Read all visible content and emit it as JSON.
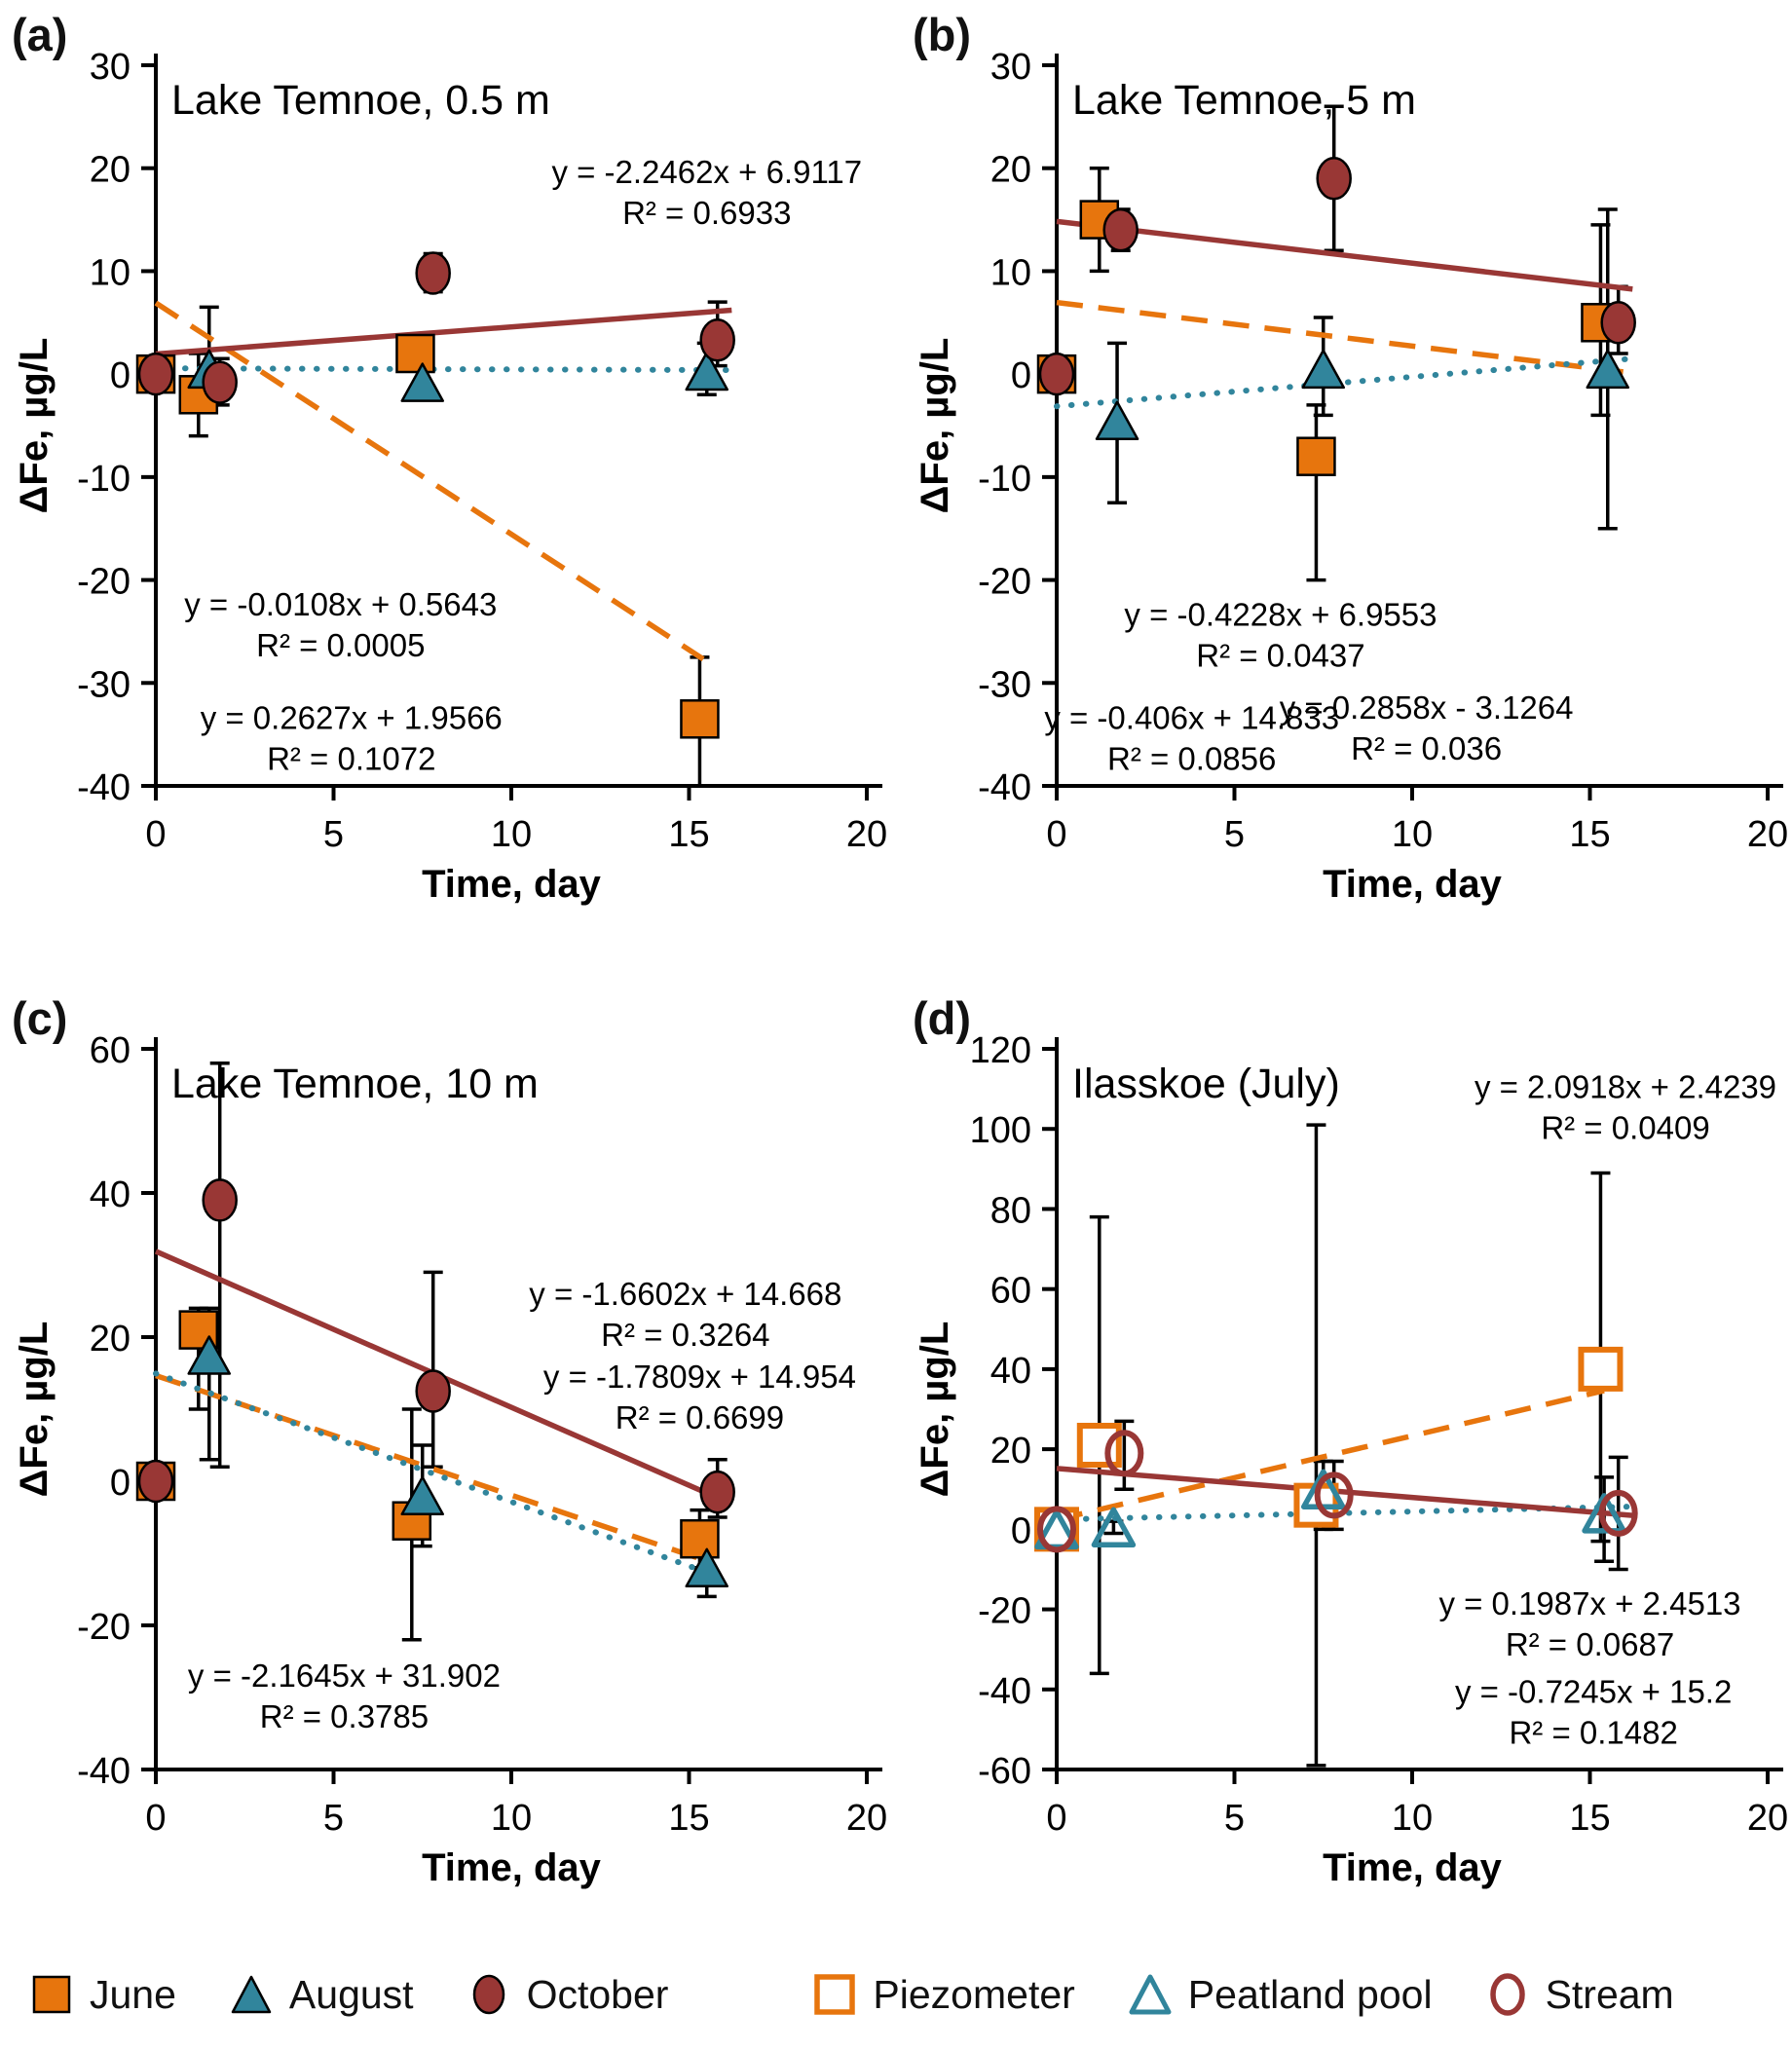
{
  "colors": {
    "june_orange": "#E7750D",
    "august_teal": "#31859C",
    "october_darkred": "#993735",
    "axis_black": "#000000"
  },
  "legend": {
    "items": [
      {
        "label": "June",
        "marker": "square",
        "filled": true,
        "color": "#E7750D"
      },
      {
        "label": "August",
        "marker": "triangle",
        "filled": true,
        "color": "#31859C"
      },
      {
        "label": "October",
        "marker": "ellipse",
        "filled": true,
        "color": "#993735"
      },
      {
        "label": "Piezometer",
        "marker": "square",
        "filled": false,
        "color": "#E7750D"
      },
      {
        "label": "Peatland pool",
        "marker": "triangle",
        "filled": false,
        "color": "#31859C"
      },
      {
        "label": "Stream",
        "marker": "ellipse",
        "filled": false,
        "color": "#993735"
      }
    ]
  },
  "chart_data": [
    {
      "id": "a",
      "panel_label": "(a)",
      "title": "Lake Temnoe, 0.5 m",
      "type": "scatter",
      "xlabel": "Time, day",
      "ylabel": "ΔFe, µg/L",
      "xlim": [
        0,
        20
      ],
      "xticks": [
        0,
        5,
        10,
        15,
        20
      ],
      "ylim": [
        -40,
        30
      ],
      "yticks": [
        30,
        20,
        10,
        0,
        -10,
        -20,
        -30,
        -40
      ],
      "series": [
        {
          "name": "June",
          "marker": "square",
          "filled": true,
          "color": "#E7750D",
          "points": [
            [
              0,
              0,
              -1.5,
              1.5
            ],
            [
              1.2,
              -2,
              -6,
              2
            ],
            [
              7.3,
              2,
              0.8,
              3.2
            ],
            [
              15.3,
              -33.5,
              -40,
              -27.5
            ]
          ]
        },
        {
          "name": "August",
          "marker": "triangle",
          "filled": true,
          "color": "#31859C",
          "points": [
            [
              1.5,
              0.5,
              -3,
              6.5
            ],
            [
              7.5,
              -0.8,
              -2.5,
              1
            ],
            [
              15.5,
              0.3,
              -2,
              3
            ]
          ]
        },
        {
          "name": "October",
          "marker": "ellipse",
          "filled": true,
          "color": "#993735",
          "points": [
            [
              0,
              0,
              0,
              0
            ],
            [
              1.8,
              -0.8,
              -3,
              1.5
            ],
            [
              7.8,
              9.8,
              8,
              11.7
            ],
            [
              15.8,
              3.3,
              0.8,
              7
            ]
          ]
        }
      ],
      "trendlines": [
        {
          "series": "June",
          "style": "dashed",
          "color": "#E7750D",
          "slope": -2.2462,
          "intercept": 6.9117,
          "x_start": 0,
          "x_end": 15.4
        },
        {
          "series": "August",
          "style": "dotted",
          "color": "#31859C",
          "slope": -0.0108,
          "intercept": 0.5643,
          "x_start": 0,
          "x_end": 16.2
        },
        {
          "series": "October",
          "style": "solid",
          "color": "#993735",
          "slope": 0.2627,
          "intercept": 1.9566,
          "x_start": 0,
          "x_end": 16.2
        }
      ],
      "equations": [
        {
          "line1": "y = -2.2462x + 6.9117",
          "line2": "R² = 0.6933",
          "color": "#E7750D",
          "cx": 15.5,
          "cy": 17.5
        },
        {
          "line1": "y = -0.0108x + 0.5643",
          "line2": "R² = 0.0005",
          "color": "#31859C",
          "cx": 5.2,
          "cy": -24.5
        },
        {
          "line1": "y = 0.2627x + 1.9566",
          "line2": "R² = 0.1072",
          "color": "#993735",
          "cx": 5.5,
          "cy": -35.5
        }
      ]
    },
    {
      "id": "b",
      "panel_label": "(b)",
      "title": "Lake Temnoe, 5 m",
      "type": "scatter",
      "xlabel": "Time, day",
      "ylabel": "ΔFe, µg/L",
      "xlim": [
        0,
        20
      ],
      "xticks": [
        0,
        5,
        10,
        15,
        20
      ],
      "ylim": [
        -40,
        30
      ],
      "yticks": [
        30,
        20,
        10,
        0,
        -10,
        -20,
        -30,
        -40
      ],
      "series": [
        {
          "name": "June",
          "marker": "square",
          "filled": true,
          "color": "#E7750D",
          "points": [
            [
              0,
              0,
              0,
              0
            ],
            [
              1.2,
              15,
              10,
              20
            ],
            [
              7.3,
              -8,
              -20,
              -3
            ],
            [
              15.3,
              5,
              -4,
              14.5
            ]
          ]
        },
        {
          "name": "August",
          "marker": "triangle",
          "filled": true,
          "color": "#31859C",
          "points": [
            [
              1.7,
              -4.5,
              -12.5,
              3
            ],
            [
              7.5,
              0.5,
              -4,
              5.5
            ],
            [
              15.5,
              0.5,
              -15,
              16
            ]
          ]
        },
        {
          "name": "October",
          "marker": "ellipse",
          "filled": true,
          "color": "#993735",
          "points": [
            [
              0,
              0,
              0,
              0
            ],
            [
              1.8,
              14,
              12,
              16
            ],
            [
              7.8,
              19,
              12,
              26
            ],
            [
              15.8,
              5,
              2,
              8.5
            ]
          ]
        }
      ],
      "trendlines": [
        {
          "series": "June",
          "style": "dashed",
          "color": "#E7750D",
          "slope": -0.4228,
          "intercept": 6.9553,
          "x_start": 0,
          "x_end": 16.2
        },
        {
          "series": "August",
          "style": "dotted",
          "color": "#31859C",
          "slope": 0.2858,
          "intercept": -3.1264,
          "x_start": 0,
          "x_end": 16.2
        },
        {
          "series": "October",
          "style": "solid",
          "color": "#993735",
          "slope": -0.406,
          "intercept": 14.833,
          "x_start": 0,
          "x_end": 16.2
        }
      ],
      "equations": [
        {
          "line1": "y = -0.4228x + 6.9553",
          "line2": "R² = 0.0437",
          "color": "#E7750D",
          "cx": 6.3,
          "cy": -25.5
        },
        {
          "line1": "y = -0.406x + 14.833",
          "line2": "R² = 0.0856",
          "color": "#993735",
          "cx": 3.8,
          "cy": -35.5
        },
        {
          "line1": "y = 0.2858x - 3.1264",
          "line2": "R² = 0.036",
          "color": "#31859C",
          "cx": 10.4,
          "cy": -34.5
        }
      ]
    },
    {
      "id": "c",
      "panel_label": "(c)",
      "title": "Lake Temnoe, 10 m",
      "type": "scatter",
      "xlabel": "Time, day",
      "ylabel": "ΔFe, µg/L",
      "xlim": [
        0,
        20
      ],
      "xticks": [
        0,
        5,
        10,
        15,
        20
      ],
      "ylim": [
        -40,
        60
      ],
      "yticks": [
        60,
        40,
        20,
        0,
        -20,
        -40
      ],
      "series": [
        {
          "name": "June",
          "marker": "square",
          "filled": true,
          "color": "#E7750D",
          "points": [
            [
              0,
              0,
              0,
              0
            ],
            [
              1.2,
              21,
              10,
              24
            ],
            [
              7.2,
              -5.5,
              -22,
              10
            ],
            [
              15.3,
              -8,
              -12,
              -4
            ]
          ]
        },
        {
          "name": "August",
          "marker": "triangle",
          "filled": true,
          "color": "#31859C",
          "points": [
            [
              1.5,
              17.5,
              3,
              24
            ],
            [
              7.5,
              -2,
              -9,
              5
            ],
            [
              15.5,
              -12,
              -16,
              -9
            ]
          ]
        },
        {
          "name": "October",
          "marker": "ellipse",
          "filled": true,
          "color": "#993735",
          "points": [
            [
              0,
              0,
              0,
              0
            ],
            [
              1.8,
              39,
              2,
              58
            ],
            [
              7.8,
              12.5,
              2,
              29
            ],
            [
              15.8,
              -1.5,
              -5,
              3
            ]
          ]
        }
      ],
      "trendlines": [
        {
          "series": "June",
          "style": "dashed",
          "color": "#E7750D",
          "slope": -1.6602,
          "intercept": 14.668,
          "x_start": 0,
          "x_end": 15.4
        },
        {
          "series": "August",
          "style": "dotted",
          "color": "#31859C",
          "slope": -1.7809,
          "intercept": 14.954,
          "x_start": 0,
          "x_end": 16.2
        },
        {
          "series": "October",
          "style": "solid",
          "color": "#993735",
          "slope": -2.1645,
          "intercept": 31.902,
          "x_start": 0,
          "x_end": 16.2
        }
      ],
      "equations": [
        {
          "line1": "y = -1.6602x + 14.668",
          "line2": "R² = 0.3264",
          "color": "#E7750D",
          "cx": 14.9,
          "cy": 23
        },
        {
          "line1": "y = -1.7809x + 14.954",
          "line2": "R² = 0.6699",
          "color": "#31859C",
          "cx": 15.3,
          "cy": 11.5
        },
        {
          "line1": "y = -2.1645x + 31.902",
          "line2": "R² = 0.3785",
          "color": "#993735",
          "cx": 5.3,
          "cy": -30
        }
      ]
    },
    {
      "id": "d",
      "panel_label": "(d)",
      "title": "Ilasskoe (July)",
      "type": "scatter",
      "xlabel": "Time, day",
      "ylabel": "ΔFe, µg/L",
      "xlim": [
        0,
        20
      ],
      "xticks": [
        0,
        5,
        10,
        15,
        20
      ],
      "ylim": [
        -60,
        120
      ],
      "yticks": [
        120,
        100,
        80,
        60,
        40,
        20,
        0,
        -20,
        -40,
        -60
      ],
      "series": [
        {
          "name": "Piezometer",
          "marker": "square",
          "filled": false,
          "color": "#E7750D",
          "points": [
            [
              0,
              0,
              -3,
              3
            ],
            [
              1.2,
              21,
              -36,
              78
            ],
            [
              7.3,
              6,
              -59,
              101
            ],
            [
              15.3,
              40,
              -3,
              89
            ]
          ]
        },
        {
          "name": "Peatland pool",
          "marker": "triangle",
          "filled": false,
          "color": "#31859C",
          "points": [
            [
              0,
              0,
              0,
              0
            ],
            [
              1.6,
              0.5,
              -1,
              2
            ],
            [
              7.5,
              10,
              0,
              17
            ],
            [
              15.4,
              4,
              -8,
              13
            ]
          ]
        },
        {
          "name": "Stream",
          "marker": "ellipse",
          "filled": false,
          "color": "#993735",
          "points": [
            [
              0,
              0,
              0,
              0
            ],
            [
              1.9,
              19,
              10,
              27
            ],
            [
              7.8,
              8.5,
              0,
              17
            ],
            [
              15.8,
              4,
              -10,
              18
            ]
          ]
        }
      ],
      "trendlines": [
        {
          "series": "Piezometer",
          "style": "dashed",
          "color": "#E7750D",
          "slope": 2.0918,
          "intercept": 2.4239,
          "x_start": 0,
          "x_end": 15.4
        },
        {
          "series": "Peatland pool",
          "style": "dotted",
          "color": "#31859C",
          "slope": 0.1987,
          "intercept": 2.4513,
          "x_start": 0,
          "x_end": 16.2
        },
        {
          "series": "Stream",
          "style": "solid",
          "color": "#993735",
          "slope": -0.7245,
          "intercept": 15.2,
          "x_start": 0,
          "x_end": 16.2
        }
      ],
      "equations": [
        {
          "line1": "y = 2.0918x + 2.4239",
          "line2": "R² = 0.0409",
          "color": "#E7750D",
          "cx": 16,
          "cy": 105
        },
        {
          "line1": "y = 0.1987x + 2.4513",
          "line2": "R² = 0.0687",
          "color": "#31859C",
          "cx": 15,
          "cy": -24
        },
        {
          "line1": "y = -0.7245x + 15.2",
          "line2": "R² = 0.1482",
          "color": "#993735",
          "cx": 15.1,
          "cy": -46
        }
      ]
    }
  ]
}
